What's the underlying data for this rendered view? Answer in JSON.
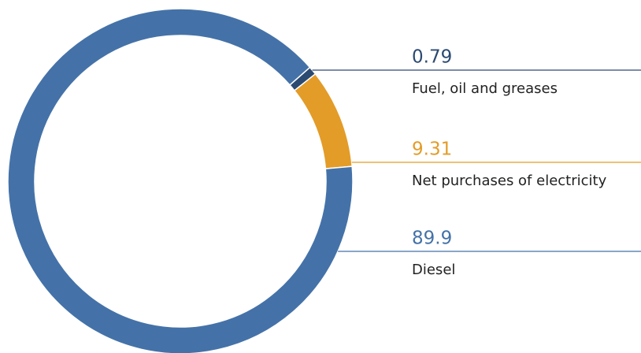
{
  "chart_data": {
    "type": "donut",
    "categories": [
      "Fuel, oil and greases",
      "Net purchases of electricity",
      "Diesel"
    ],
    "values": [
      0.79,
      9.31,
      89.9
    ],
    "colors": [
      "#2b4a72",
      "#e39c28",
      "#4472a8"
    ]
  }
}
